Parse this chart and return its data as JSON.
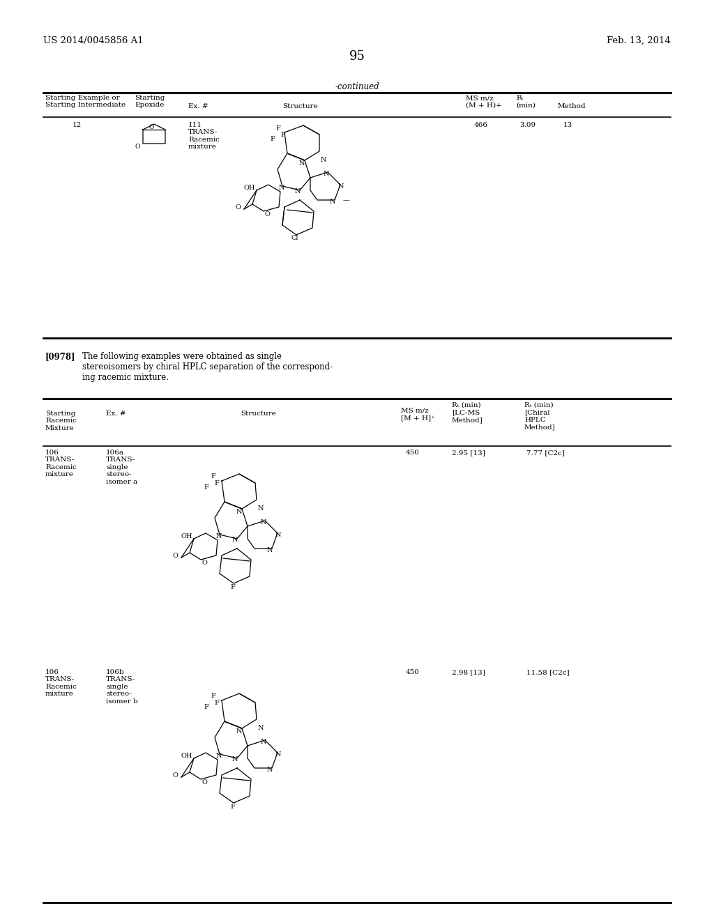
{
  "bg_color": "#ffffff",
  "header_left": "US 2014/0045856 A1",
  "header_right": "Feb. 13, 2014",
  "page_number": "95",
  "continued_label": "-continued",
  "line_color": "#000000",
  "font_size_small": 7.5,
  "font_size_body": 8.5,
  "font_size_page": 12
}
